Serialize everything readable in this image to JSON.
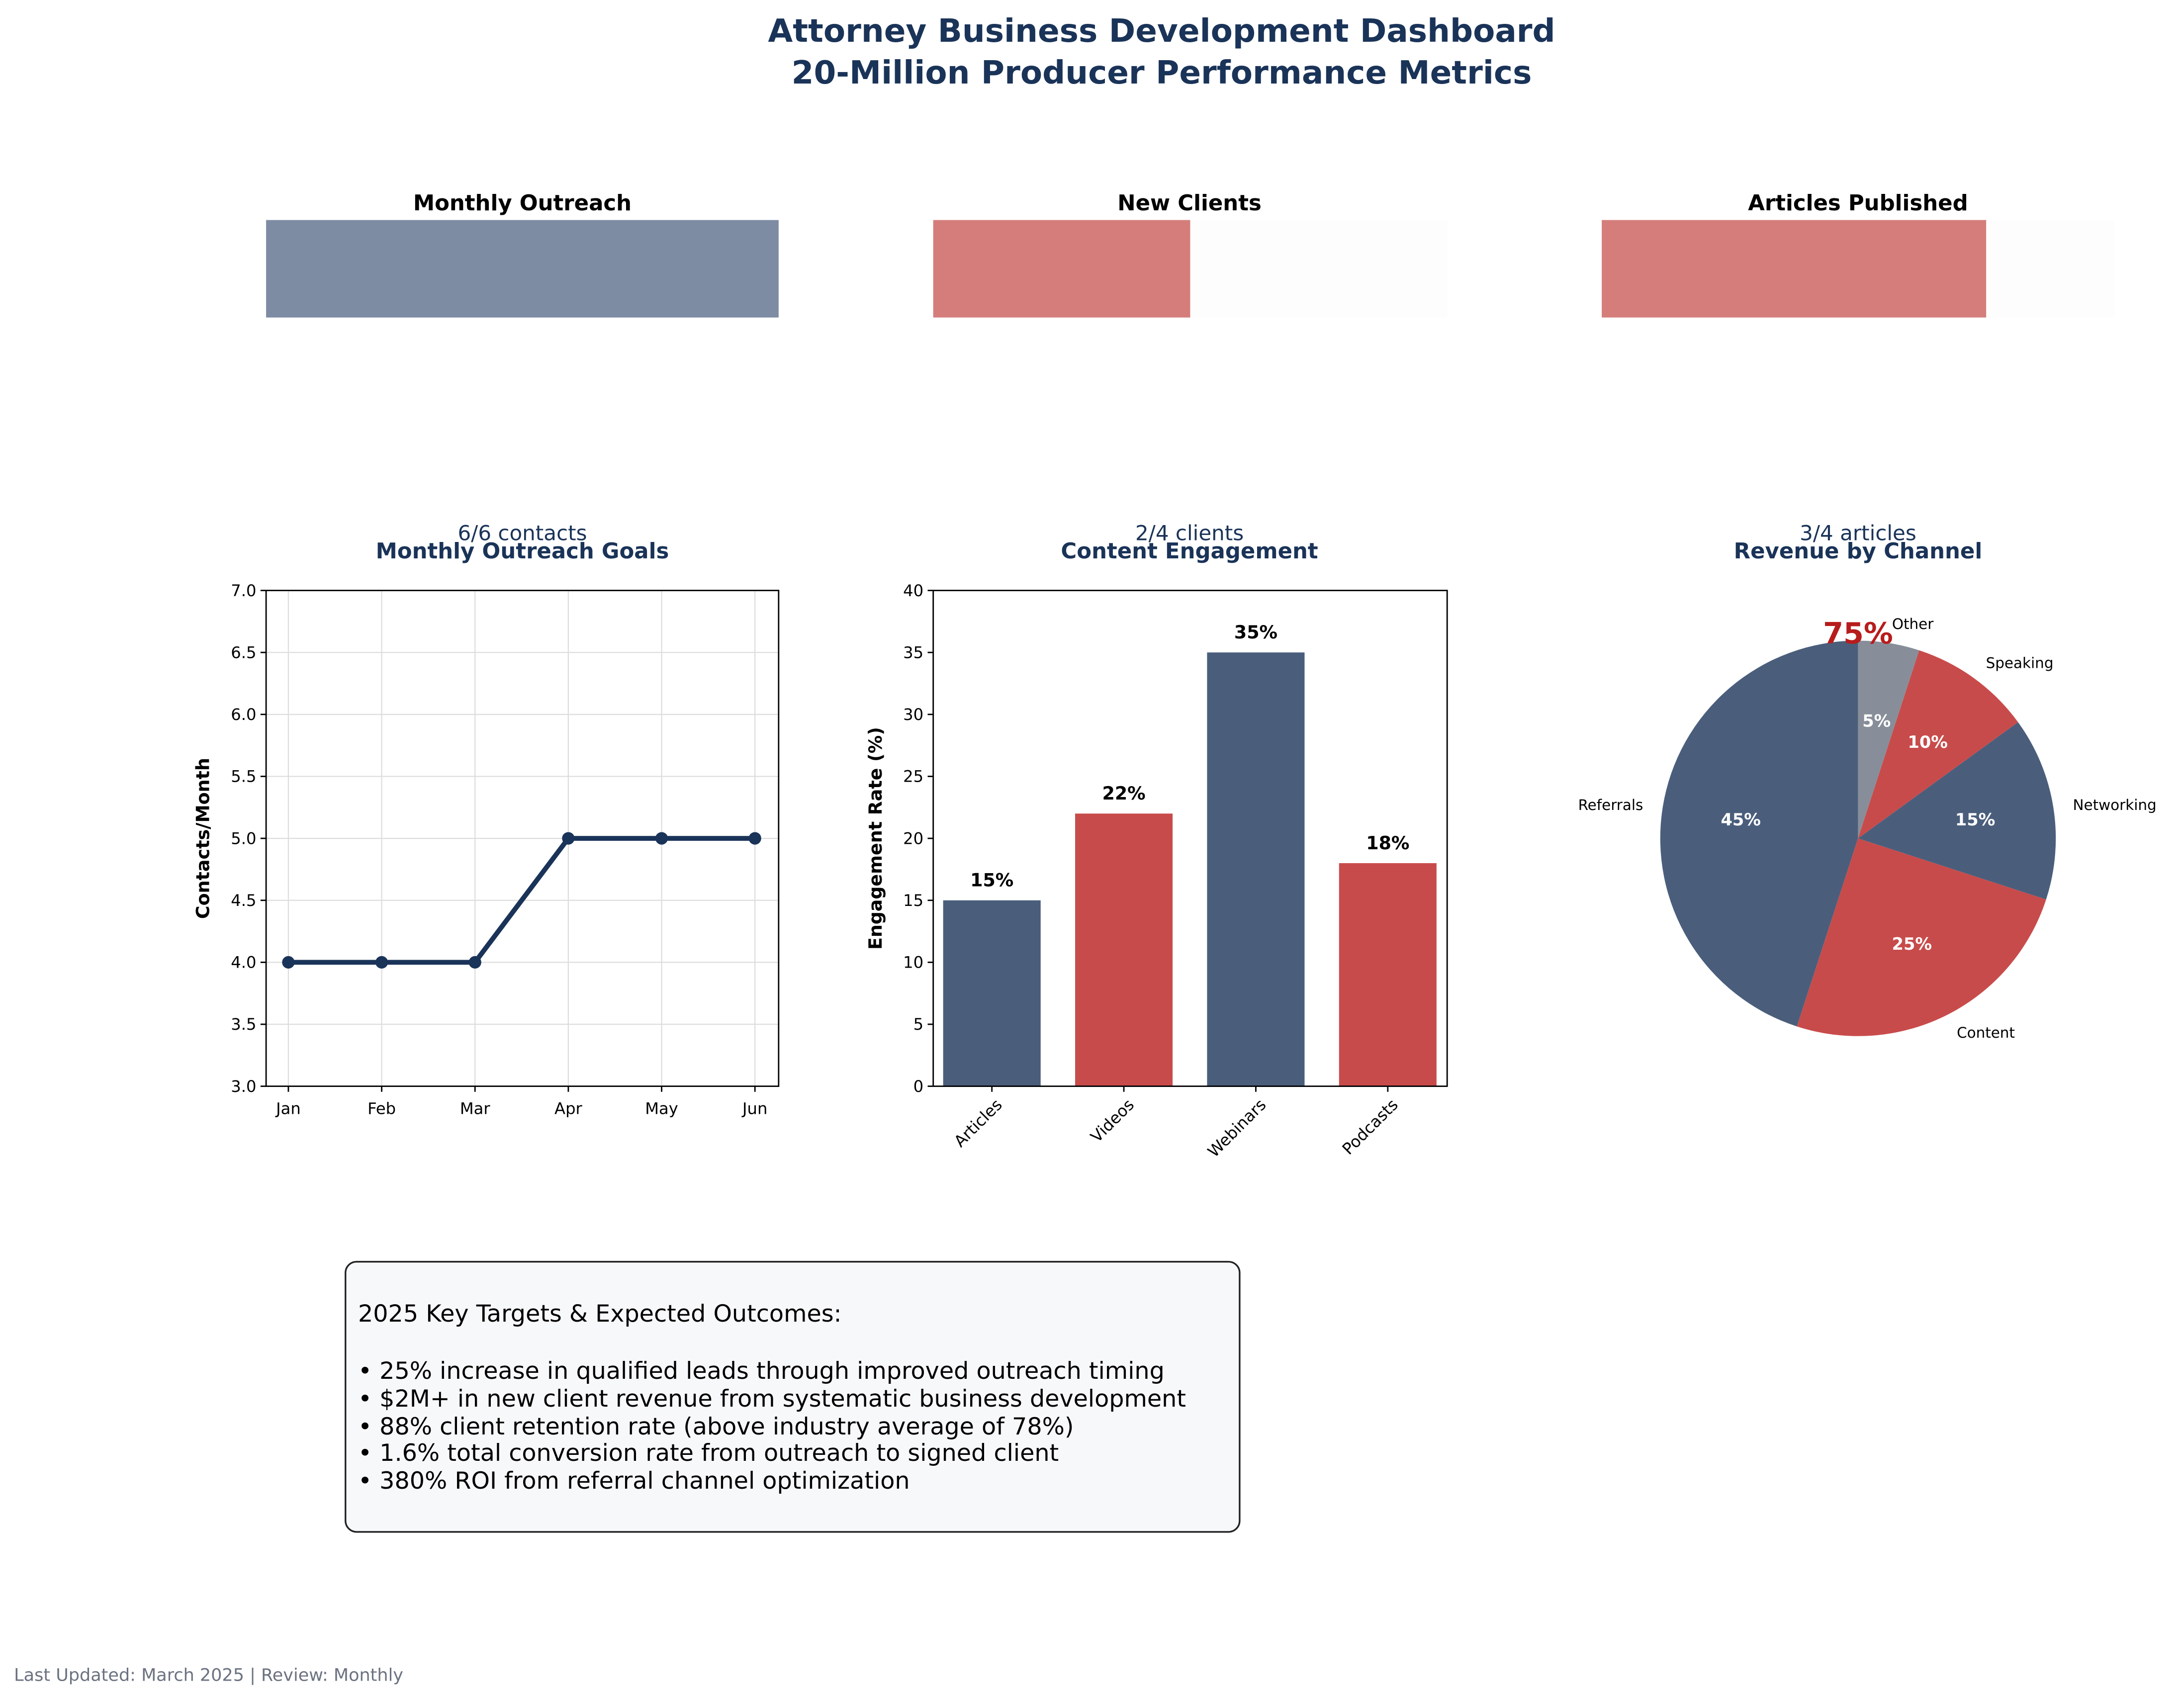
{
  "header": {
    "title_line1": "Attorney Business Development Dashboard",
    "title_line2": "20-Million Producer Performance Metrics"
  },
  "kpis": [
    {
      "title": "Monthly Outreach",
      "label": "6/6 contacts",
      "progress": 1.0,
      "color": "#7d8ba3"
    },
    {
      "title": "New Clients",
      "label": "2/4 clients",
      "progress": 0.5,
      "color": "#d47d7b"
    },
    {
      "title": "Articles Published",
      "label": "3/4 articles",
      "progress": 0.75,
      "color": "#d47d7b"
    }
  ],
  "track_color": "#fcfdfc",
  "pie_overlay_text": "75%",
  "chart_data": [
    {
      "type": "line",
      "title": "Monthly Outreach Goals",
      "xlabel": "",
      "ylabel": "Contacts/Month",
      "categories": [
        "Jan",
        "Feb",
        "Mar",
        "Apr",
        "May",
        "Jun"
      ],
      "values": [
        4,
        4,
        4,
        5,
        5,
        5
      ],
      "ylim": [
        3,
        7
      ],
      "yticks": [
        "3.0",
        "3.5",
        "4.0",
        "4.5",
        "5.0",
        "5.5",
        "6.0",
        "6.5",
        "7.0"
      ],
      "grid": true,
      "color": "#1a3358"
    },
    {
      "type": "bar",
      "title": "Content Engagement",
      "xlabel": "",
      "ylabel": "Engagement Rate (%)",
      "categories": [
        "Articles",
        "Videos",
        "Webinars",
        "Podcasts"
      ],
      "values": [
        15,
        22,
        35,
        18
      ],
      "data_labels": [
        "15%",
        "22%",
        "35%",
        "18%"
      ],
      "ylim": [
        0,
        40
      ],
      "yticks": [
        "0",
        "5",
        "10",
        "15",
        "20",
        "25",
        "30",
        "35",
        "40"
      ],
      "colors": [
        "#4a5e7c",
        "#c84b4b",
        "#4a5e7c",
        "#c84b4b"
      ],
      "grid": false
    },
    {
      "type": "pie",
      "title": "Revenue by Channel",
      "categories": [
        "Referrals",
        "Content",
        "Networking",
        "Speaking",
        "Other"
      ],
      "values": [
        45,
        25,
        15,
        10,
        5
      ],
      "data_labels": [
        "45%",
        "25%",
        "15%",
        "10%",
        "5%"
      ],
      "colors": [
        "#4a5e7c",
        "#c84b4b",
        "#4a5e7c",
        "#c84b4b",
        "#878e99"
      ]
    }
  ],
  "targets": {
    "heading": "2025 Key Targets & Expected Outcomes:",
    "items": [
      "• 25% increase in qualified leads through improved outreach timing",
      "• $2M+ in new client revenue from systematic business development",
      "• 88% client retention rate (above industry average of 78%)",
      "• 1.6% total conversion rate from outreach to signed client",
      "• 380% ROI from referral channel optimization"
    ]
  },
  "footer": "Last Updated: March 2025 | Review: Monthly"
}
